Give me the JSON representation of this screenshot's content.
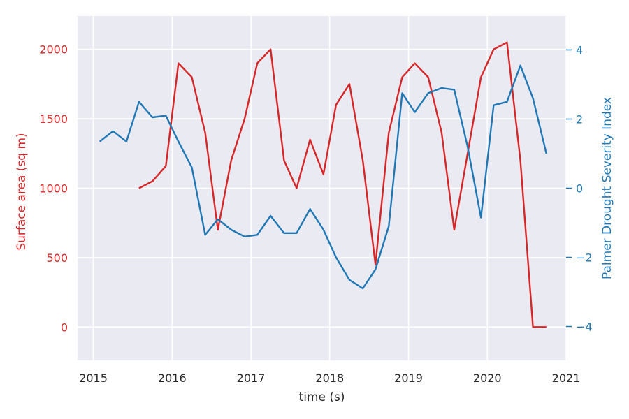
{
  "chart_data": {
    "type": "line",
    "title": "",
    "xlabel": "time (s)",
    "ylabel_left": "Surface area (sq m)",
    "ylabel_right": "Palmer Drought Severity Index",
    "grid": true,
    "x_ticks": [
      "2015",
      "2016",
      "2017",
      "2018",
      "2019",
      "2020",
      "2021"
    ],
    "y_left_ticks": [
      "0",
      "500",
      "1000",
      "1500",
      "2000"
    ],
    "y_right_ticks": [
      "−4",
      "−2",
      "0",
      "2",
      "4"
    ],
    "xlim": [
      2014.8,
      2021.0
    ],
    "ylim_left": [
      -240,
      2240
    ],
    "ylim_right": [
      -4.98,
      4.98
    ],
    "colors": {
      "left_series": "#d62728",
      "right_series": "#1f77b4",
      "background": "#eaeaf2",
      "grid": "#ffffff",
      "text": "#262626"
    },
    "series": [
      {
        "axis": "left",
        "x": [
          2015.58,
          2015.75,
          2015.92,
          2016.08,
          2016.25,
          2016.42,
          2016.58,
          2016.75,
          2016.92,
          2017.08,
          2017.25,
          2017.42,
          2017.58,
          2017.75,
          2017.92,
          2018.08,
          2018.25,
          2018.42,
          2018.58,
          2018.75,
          2018.92,
          2019.08,
          2019.25,
          2019.42,
          2019.58,
          2019.75,
          2019.92,
          2020.08,
          2020.25,
          2020.42,
          2020.58,
          2020.75
        ],
        "values": [
          1000,
          1050,
          1160,
          1900,
          1800,
          1400,
          700,
          1200,
          1500,
          1900,
          2000,
          1200,
          1000,
          1350,
          1100,
          1600,
          1750,
          1200,
          450,
          1400,
          1800,
          1900,
          1800,
          1400,
          700,
          1250,
          1800,
          2000,
          2050,
          1200,
          0,
          0
        ]
      },
      {
        "axis": "right",
        "x": [
          2015.08,
          2015.25,
          2015.42,
          2015.58,
          2015.75,
          2015.92,
          2016.08,
          2016.25,
          2016.42,
          2016.58,
          2016.75,
          2016.92,
          2017.08,
          2017.25,
          2017.42,
          2017.58,
          2017.75,
          2017.92,
          2018.08,
          2018.25,
          2018.42,
          2018.58,
          2018.75,
          2018.92,
          2019.08,
          2019.25,
          2019.42,
          2019.58,
          2019.75,
          2019.92,
          2020.08,
          2020.25,
          2020.42,
          2020.58,
          2020.75
        ],
        "values": [
          1.35,
          1.65,
          1.35,
          2.5,
          2.05,
          2.1,
          1.35,
          0.6,
          -1.35,
          -0.9,
          -1.2,
          -1.4,
          -1.35,
          -0.8,
          -1.3,
          -1.3,
          -0.6,
          -1.2,
          -2.0,
          -2.65,
          -2.9,
          -2.35,
          -1.1,
          2.75,
          2.2,
          2.75,
          2.9,
          2.85,
          1.2,
          -0.85,
          2.4,
          2.5,
          3.55,
          2.6,
          1.0
        ]
      }
    ]
  }
}
